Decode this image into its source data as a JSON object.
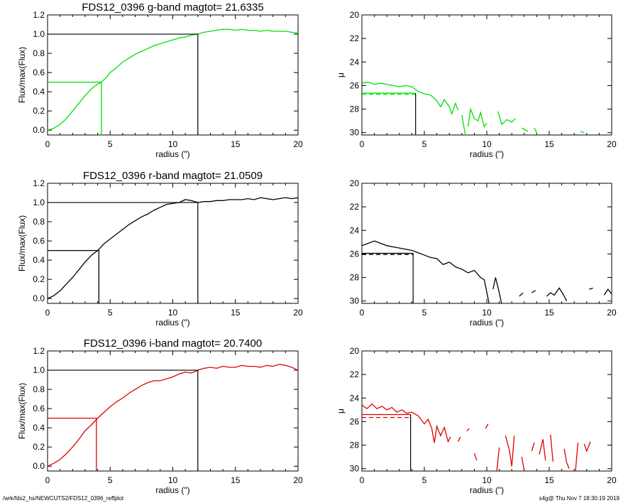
{
  "colors": {
    "g": "#00e000",
    "r": "#000000",
    "i": "#e00000",
    "frame": "#000000"
  },
  "footer": {
    "left": "/wrk/fds2_hs/NEWCUTS2/FDS12_0396_reffplot",
    "right": "s4g@  Thu Nov  7 18:30:19 2019"
  },
  "chart_data": [
    {
      "type": "line",
      "band": "g",
      "title": "FDS12_0396 g-band  magtot=      21.6335",
      "xlabel": "radius (\")",
      "ylabel": "Flux/max(Flux)",
      "xlim": [
        0,
        20
      ],
      "ylim": [
        -0.05,
        1.2
      ],
      "xticks": [
        "0",
        "5",
        "10",
        "15",
        "20"
      ],
      "xtickvals": [
        0,
        5,
        10,
        15,
        20
      ],
      "yticks": [
        "0.0",
        "0.2",
        "0.4",
        "0.6",
        "0.8",
        "1.0",
        "1.2"
      ],
      "ytickvals": [
        0,
        0.2,
        0.4,
        0.6,
        0.8,
        1.0,
        1.2
      ],
      "x": [
        0,
        0.5,
        1,
        1.5,
        2,
        2.5,
        3,
        3.5,
        4,
        4.3,
        4.7,
        5,
        5.5,
        6,
        6.5,
        7,
        7.5,
        8,
        8.5,
        9,
        9.5,
        10,
        10.5,
        11,
        11.5,
        12,
        12.5,
        13,
        13.5,
        14,
        14.5,
        15,
        15.5,
        16,
        16.5,
        17,
        17.5,
        18,
        18.5,
        19,
        19.5,
        20
      ],
      "y": [
        0,
        0.02,
        0.06,
        0.12,
        0.2,
        0.28,
        0.36,
        0.43,
        0.48,
        0.5,
        0.55,
        0.6,
        0.65,
        0.71,
        0.75,
        0.79,
        0.82,
        0.85,
        0.88,
        0.9,
        0.92,
        0.94,
        0.96,
        0.97,
        0.99,
        1.0,
        1.02,
        1.03,
        1.04,
        1.05,
        1.05,
        1.04,
        1.05,
        1.04,
        1.04,
        1.03,
        1.04,
        1.03,
        1.03,
        1.03,
        1.02,
        1.01
      ],
      "half_light": {
        "r": 4.3,
        "flux": 0.5
      },
      "total": {
        "r": 12.0,
        "flux": 1.0
      }
    },
    {
      "type": "line",
      "band": "g",
      "xlabel": "radius (\")",
      "ylabel": "μ",
      "xlim": [
        0,
        20
      ],
      "ylim": [
        30.2,
        20
      ],
      "yreversed": true,
      "xticks": [
        "0",
        "5",
        "10",
        "15",
        "20"
      ],
      "xtickvals": [
        0,
        5,
        10,
        15,
        20
      ],
      "yticks": [
        "20",
        "22",
        "24",
        "26",
        "28",
        "30"
      ],
      "ytickvals": [
        20,
        22,
        24,
        26,
        28,
        30
      ],
      "segments": [
        [
          [
            0,
            25.8
          ],
          [
            0.5,
            25.7
          ],
          [
            1,
            25.9
          ],
          [
            1.5,
            25.8
          ],
          [
            2,
            25.9
          ],
          [
            2.5,
            26.0
          ],
          [
            3,
            26.1
          ],
          [
            3.5,
            26.0
          ],
          [
            4,
            26.1
          ],
          [
            4.5,
            26.5
          ],
          [
            5,
            26.7
          ],
          [
            5.5,
            26.8
          ],
          [
            6,
            27.3
          ],
          [
            6.3,
            27.8
          ],
          [
            6.6,
            27.2
          ],
          [
            7,
            27.8
          ],
          [
            7.2,
            28.4
          ],
          [
            7.5,
            27.5
          ],
          [
            7.7,
            28.1
          ]
        ],
        [
          [
            8.0,
            28.5
          ],
          [
            8.3,
            30.3
          ]
        ],
        [
          [
            8.5,
            29.5
          ],
          [
            8.7,
            28.0
          ],
          [
            9,
            28.8
          ],
          [
            9.3,
            29.0
          ],
          [
            9.5,
            28.3
          ],
          [
            9.8,
            29.5
          ],
          [
            10,
            29.2
          ]
        ],
        [
          [
            10.9,
            28.2
          ],
          [
            11.2,
            29.3
          ],
          [
            11.6,
            28.9
          ],
          [
            12,
            29.1
          ],
          [
            12.3,
            28.8
          ]
        ],
        [
          [
            12.8,
            29.6
          ],
          [
            13.3,
            29.9
          ]
        ],
        [
          [
            13.8,
            29.6
          ],
          [
            14.0,
            30.0
          ]
        ],
        [
          [
            17.5,
            29.9
          ],
          [
            17.8,
            30.0
          ]
        ]
      ],
      "mu_half": {
        "r": 4.3,
        "mu": 26.65
      },
      "mu_avg": 26.75
    },
    {
      "type": "line",
      "band": "r",
      "title": "FDS12_0396 r-band  magtot=      21.0509",
      "xlabel": "radius (\")",
      "ylabel": "Flux/max(Flux)",
      "xlim": [
        0,
        20
      ],
      "ylim": [
        -0.05,
        1.2
      ],
      "xticks": [
        "0",
        "5",
        "10",
        "15",
        "20"
      ],
      "xtickvals": [
        0,
        5,
        10,
        15,
        20
      ],
      "yticks": [
        "0.0",
        "0.2",
        "0.4",
        "0.6",
        "0.8",
        "1.0",
        "1.2"
      ],
      "ytickvals": [
        0,
        0.2,
        0.4,
        0.6,
        0.8,
        1.0,
        1.2
      ],
      "x": [
        0,
        0.5,
        1,
        1.5,
        2,
        2.5,
        3,
        3.5,
        4,
        4.5,
        5,
        5.5,
        6,
        6.5,
        7,
        7.5,
        8,
        8.5,
        9,
        9.5,
        10,
        10.5,
        11,
        11.5,
        12,
        12.5,
        13,
        13.5,
        14,
        14.5,
        15,
        15.5,
        16,
        16.5,
        17,
        17.5,
        18,
        18.5,
        19,
        19.5,
        20
      ],
      "y": [
        0,
        0.03,
        0.08,
        0.15,
        0.22,
        0.3,
        0.38,
        0.45,
        0.5,
        0.57,
        0.62,
        0.67,
        0.72,
        0.77,
        0.81,
        0.85,
        0.88,
        0.92,
        0.95,
        0.98,
        0.99,
        1.0,
        1.03,
        1.02,
        1.0,
        1.01,
        1.01,
        1.02,
        1.02,
        1.03,
        1.03,
        1.03,
        1.04,
        1.03,
        1.05,
        1.04,
        1.03,
        1.04,
        1.05,
        1.04,
        1.05
      ],
      "half_light": {
        "r": 4.1,
        "flux": 0.5
      },
      "total": {
        "r": 12.0,
        "flux": 1.0
      }
    },
    {
      "type": "line",
      "band": "r",
      "xlabel": "radius (\")",
      "ylabel": "",
      "xlim": [
        0,
        20
      ],
      "ylim": [
        30.2,
        20
      ],
      "yreversed": true,
      "xticks": [
        "0",
        "5",
        "10",
        "15",
        "20"
      ],
      "xtickvals": [
        0,
        5,
        10,
        15,
        20
      ],
      "yticks": [
        "20",
        "22",
        "24",
        "26",
        "28",
        "30"
      ],
      "ytickvals": [
        20,
        22,
        24,
        26,
        28,
        30
      ],
      "segments": [
        [
          [
            0,
            25.3
          ],
          [
            0.5,
            25.1
          ],
          [
            1,
            24.9
          ],
          [
            1.5,
            25.1
          ],
          [
            2,
            25.3
          ],
          [
            2.5,
            25.4
          ],
          [
            3,
            25.5
          ],
          [
            3.5,
            25.6
          ],
          [
            4,
            25.7
          ],
          [
            4.5,
            25.9
          ],
          [
            5,
            26.1
          ],
          [
            5.5,
            26.3
          ],
          [
            6,
            26.4
          ],
          [
            6.5,
            26.9
          ],
          [
            7,
            26.7
          ],
          [
            7.5,
            27.1
          ],
          [
            8,
            27.3
          ],
          [
            8.5,
            27.6
          ],
          [
            9,
            27.4
          ],
          [
            9.5,
            28.0
          ],
          [
            9.8,
            28.2
          ],
          [
            10.2,
            30.3
          ]
        ],
        [
          [
            10.5,
            29.0
          ],
          [
            10.7,
            28.0
          ],
          [
            11,
            29.3
          ],
          [
            11.2,
            30.3
          ]
        ],
        [
          [
            12.6,
            29.6
          ],
          [
            12.9,
            29.3
          ]
        ],
        [
          [
            13.6,
            29.3
          ],
          [
            13.9,
            29.1
          ]
        ],
        [
          [
            14.8,
            29.6
          ],
          [
            15.1,
            29.3
          ],
          [
            15.4,
            29.5
          ],
          [
            15.8,
            28.9
          ],
          [
            16.1,
            29.4
          ],
          [
            16.4,
            30.0
          ]
        ],
        [
          [
            18.2,
            29.0
          ],
          [
            18.5,
            28.9
          ]
        ],
        [
          [
            19.4,
            29.5
          ],
          [
            19.7,
            29.0
          ],
          [
            20,
            29.4
          ]
        ]
      ],
      "mu_half": {
        "r": 4.1,
        "mu": 25.95
      },
      "mu_avg": 26.05
    },
    {
      "type": "line",
      "band": "i",
      "title": "FDS12_0396 i-band  magtot=      20.7400",
      "xlabel": "radius (\")",
      "ylabel": "Flux/max(Flux)",
      "xlim": [
        0,
        20
      ],
      "ylim": [
        -0.05,
        1.2
      ],
      "xticks": [
        "0",
        "5",
        "10",
        "15",
        "20"
      ],
      "xtickvals": [
        0,
        5,
        10,
        15,
        20
      ],
      "yticks": [
        "0.0",
        "0.2",
        "0.4",
        "0.6",
        "0.8",
        "1.0",
        "1.2"
      ],
      "ytickvals": [
        0,
        0.2,
        0.4,
        0.6,
        0.8,
        1.0,
        1.2
      ],
      "x": [
        0,
        0.5,
        1,
        1.5,
        2,
        2.5,
        3,
        3.5,
        4,
        4.5,
        5,
        5.5,
        6,
        6.5,
        7,
        7.5,
        8,
        8.5,
        9,
        9.5,
        10,
        10.5,
        11,
        11.5,
        12,
        12.5,
        13,
        13.5,
        14,
        14.5,
        15,
        15.5,
        16,
        16.5,
        17,
        17.5,
        18,
        18.5,
        19,
        19.5,
        20
      ],
      "y": [
        0,
        0.03,
        0.07,
        0.13,
        0.2,
        0.28,
        0.37,
        0.43,
        0.5,
        0.56,
        0.62,
        0.67,
        0.71,
        0.76,
        0.8,
        0.84,
        0.87,
        0.89,
        0.89,
        0.91,
        0.93,
        0.96,
        0.98,
        0.97,
        1.0,
        1.02,
        1.03,
        1.02,
        1.04,
        1.03,
        1.03,
        1.05,
        1.04,
        1.04,
        1.03,
        1.05,
        1.04,
        1.06,
        1.05,
        1.03,
        1.0
      ],
      "half_light": {
        "r": 3.9,
        "flux": 0.5
      },
      "total": {
        "r": 12.0,
        "flux": 1.0
      }
    },
    {
      "type": "line",
      "band": "i",
      "xlabel": "radius (\")",
      "ylabel": "μ",
      "xlim": [
        0,
        20
      ],
      "ylim": [
        30.2,
        20
      ],
      "yreversed": true,
      "xticks": [
        "0",
        "5",
        "10",
        "15",
        "20"
      ],
      "xtickvals": [
        0,
        5,
        10,
        15,
        20
      ],
      "yticks": [
        "20",
        "22",
        "24",
        "26",
        "28",
        "30"
      ],
      "ytickvals": [
        20,
        22,
        24,
        26,
        28,
        30
      ],
      "segments": [
        [
          [
            0,
            24.6
          ],
          [
            0.4,
            24.9
          ],
          [
            0.8,
            24.5
          ],
          [
            1.2,
            24.9
          ],
          [
            1.6,
            24.7
          ],
          [
            2,
            25.0
          ],
          [
            2.4,
            24.8
          ],
          [
            2.8,
            25.2
          ],
          [
            3.2,
            25.0
          ],
          [
            3.6,
            25.3
          ],
          [
            4,
            25.2
          ],
          [
            4.5,
            25.5
          ],
          [
            5,
            26.2
          ],
          [
            5.3,
            25.8
          ],
          [
            5.6,
            26.6
          ],
          [
            5.8,
            27.8
          ],
          [
            6.0,
            26.4
          ],
          [
            6.3,
            27.2
          ],
          [
            6.6,
            26.5
          ],
          [
            6.9,
            27.7
          ],
          [
            7.1,
            27.3
          ]
        ],
        [
          [
            7.7,
            27.7
          ],
          [
            7.9,
            27.3
          ]
        ],
        [
          [
            8.4,
            26.8
          ],
          [
            8.6,
            26.6
          ]
        ],
        [
          [
            9.0,
            28.7
          ],
          [
            9.2,
            29.3
          ]
        ],
        [
          [
            9.9,
            26.6
          ],
          [
            10.1,
            26.2
          ]
        ],
        [
          [
            10.8,
            30.2
          ],
          [
            11.0,
            28.2
          ]
        ],
        [
          [
            11.5,
            27.2
          ],
          [
            11.8,
            28.4
          ],
          [
            12.0,
            29.8
          ],
          [
            12.2,
            27.2
          ]
        ],
        [
          [
            12.8,
            29.0
          ],
          [
            13.0,
            30.2
          ]
        ],
        [
          [
            13.6,
            28.5
          ],
          [
            13.8,
            27.8
          ]
        ],
        [
          [
            14.2,
            28.8
          ],
          [
            14.5,
            27.5
          ],
          [
            14.7,
            29.3
          ]
        ],
        [
          [
            15.1,
            27.1
          ],
          [
            15.3,
            29.4
          ]
        ],
        [
          [
            16.2,
            28.3
          ],
          [
            16.4,
            29.5
          ],
          [
            16.6,
            30.0
          ]
        ],
        [
          [
            17.1,
            30.2
          ],
          [
            17.3,
            27.8
          ]
        ],
        [
          [
            17.8,
            27.9
          ],
          [
            18.0,
            28.5
          ],
          [
            18.3,
            27.7
          ]
        ]
      ],
      "mu_half": {
        "r": 3.9,
        "mu": 25.4
      },
      "mu_avg": 25.65
    }
  ]
}
